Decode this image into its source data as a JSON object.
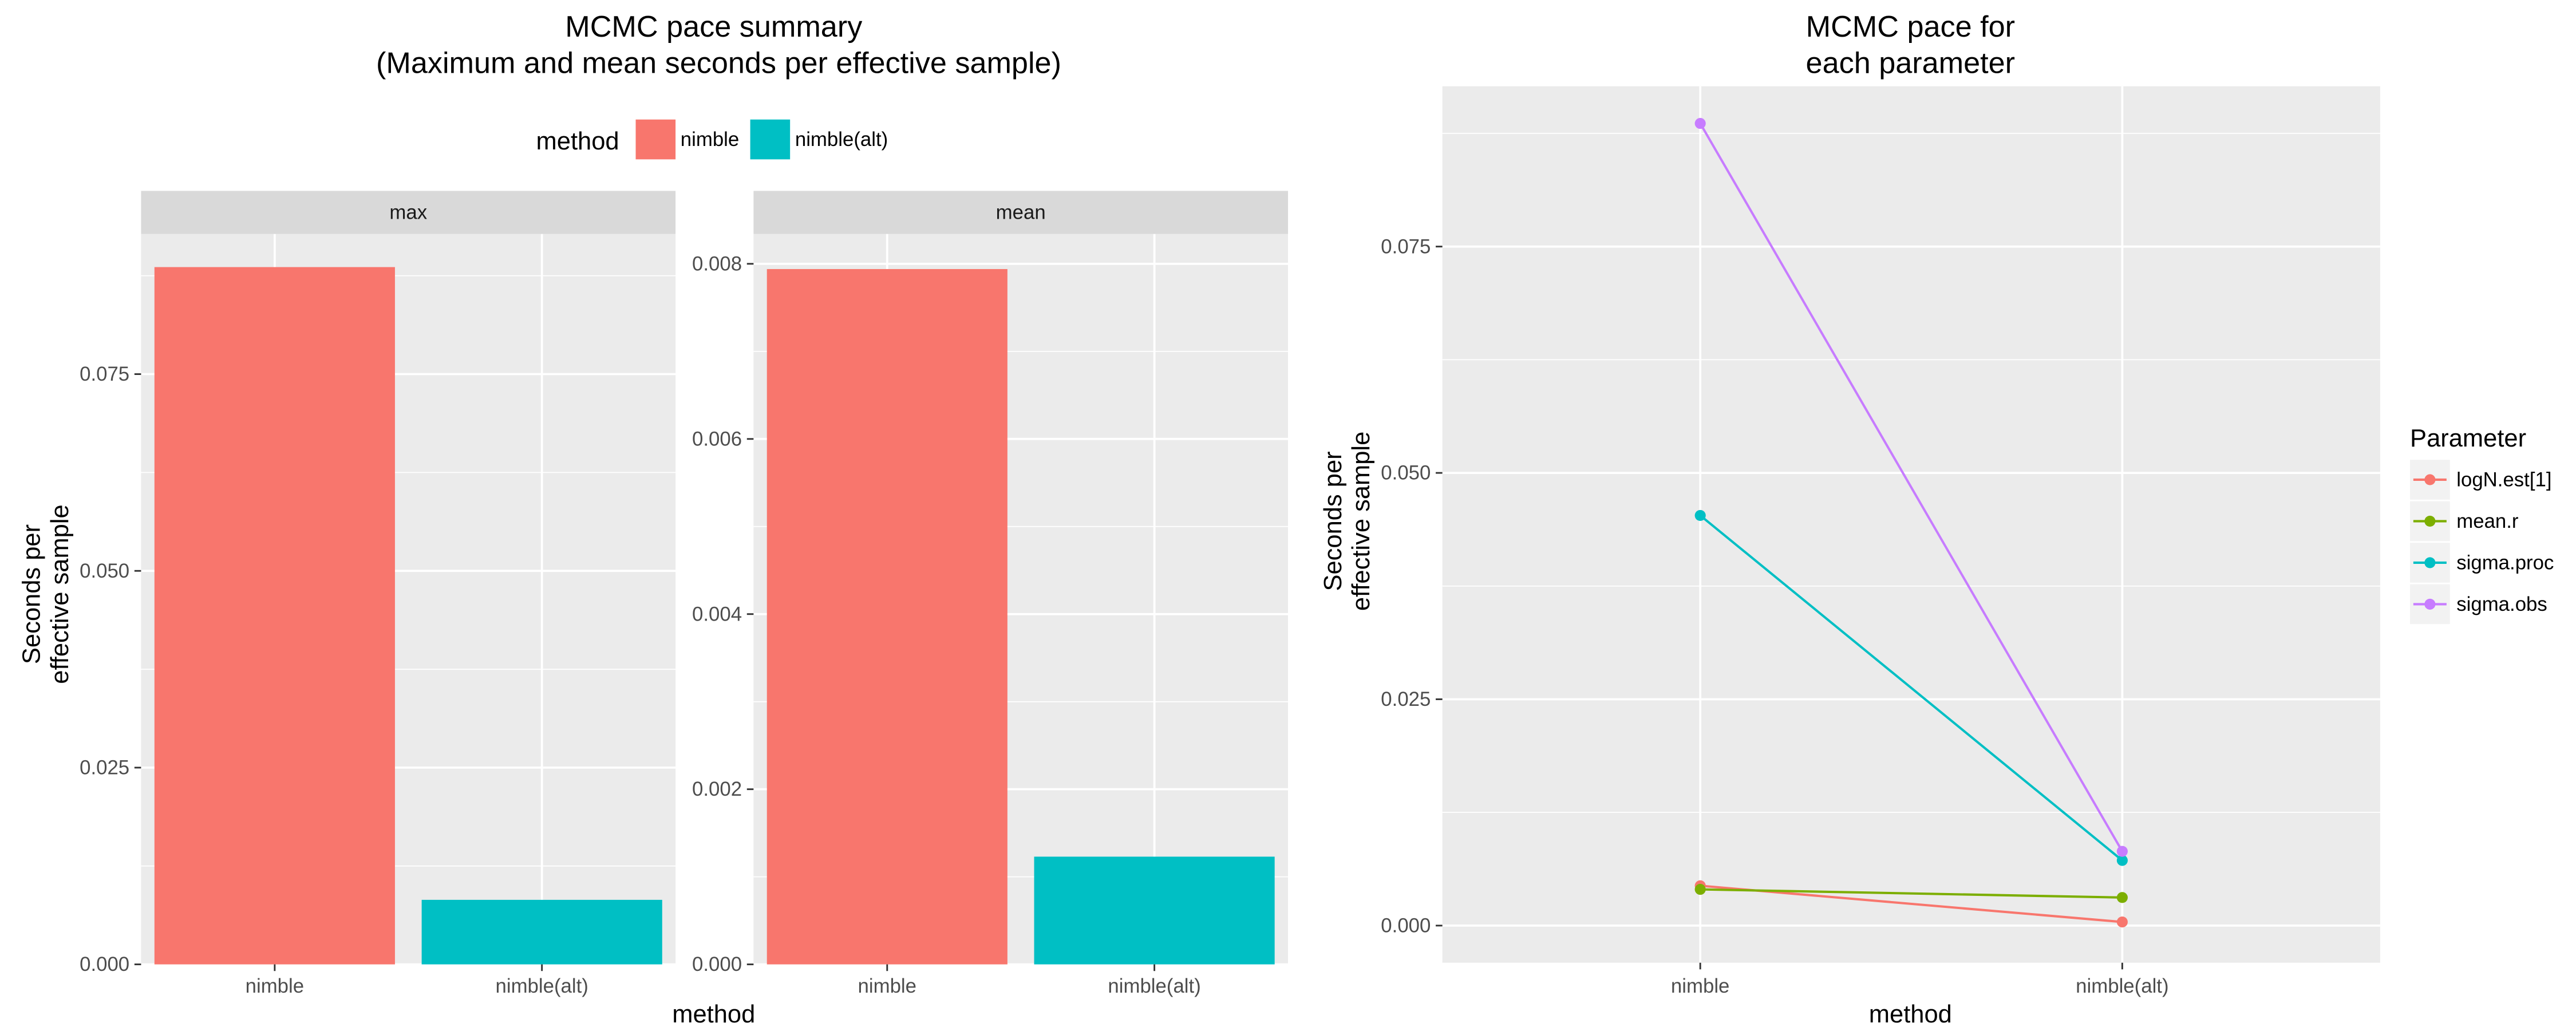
{
  "chart_data": [
    {
      "type": "bar",
      "title": "MCMC pace summary",
      "subtitle": "(Maximum and mean seconds per effective sample)",
      "xlabel": "method",
      "ylabel_line1": "Seconds per",
      "ylabel_line2": "effective sample",
      "legend": {
        "title": "method",
        "position": "top",
        "entries": [
          {
            "label": "nimble",
            "color": "#F8766D"
          },
          {
            "label": "nimble(alt)",
            "color": "#00BFC4"
          }
        ]
      },
      "categories": [
        "nimble",
        "nimble(alt)"
      ],
      "facets": [
        {
          "label": "max",
          "values": [
            0.0886,
            0.0082
          ],
          "ylim": [
            0,
            0.0928
          ],
          "yticks": [
            0.0,
            0.025,
            0.05,
            0.075
          ],
          "ytick_labels": [
            "0.000",
            "0.025",
            "0.050",
            "0.075"
          ]
        },
        {
          "label": "mean",
          "values": [
            0.00794,
            0.00123
          ],
          "ylim": [
            0,
            0.00834
          ],
          "yticks": [
            0.0,
            0.002,
            0.004,
            0.006,
            0.008
          ],
          "ytick_labels": [
            "0.000",
            "0.002",
            "0.004",
            "0.006",
            "0.008"
          ]
        }
      ],
      "grid": true
    },
    {
      "type": "line",
      "title_line1": "MCMC pace for",
      "title_line2": "each parameter",
      "xlabel": "method",
      "ylabel_line1": "Seconds per",
      "ylabel_line2": "effective sample",
      "categories": [
        "nimble",
        "nimble(alt)"
      ],
      "ylim": [
        -0.0041,
        0.0927
      ],
      "yticks": [
        0.0,
        0.025,
        0.05,
        0.075
      ],
      "ytick_labels": [
        "0.000",
        "0.025",
        "0.050",
        "0.075"
      ],
      "legend": {
        "title": "Parameter",
        "position": "right"
      },
      "series": [
        {
          "name": "logN.est[1]",
          "color": "#F8766D",
          "values": [
            0.0044,
            0.0004
          ]
        },
        {
          "name": "mean.r",
          "color": "#7CAE00",
          "values": [
            0.004,
            0.0031
          ]
        },
        {
          "name": "sigma.proc",
          "color": "#00BFC4",
          "values": [
            0.0453,
            0.0072
          ]
        },
        {
          "name": "sigma.obs",
          "color": "#C77CFF",
          "values": [
            0.0886,
            0.0082
          ]
        }
      ],
      "grid": true
    }
  ]
}
